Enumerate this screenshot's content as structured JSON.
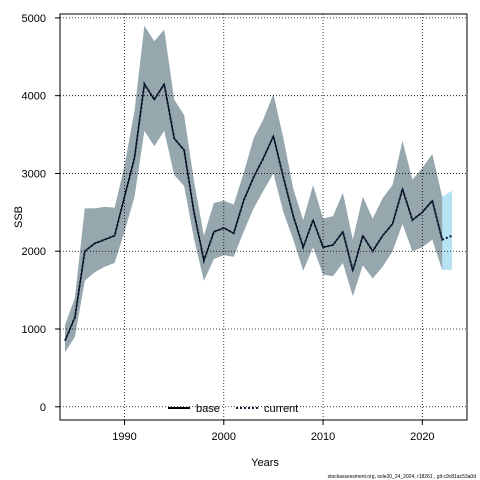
{
  "chart_data": {
    "type": "line",
    "title": "",
    "xlabel": "Years",
    "ylabel": "SSB",
    "xlim": [
      1983.5,
      2024.5
    ],
    "ylim": [
      -170,
      5050
    ],
    "x_ticks": [
      1990,
      2000,
      2010,
      2020
    ],
    "y_ticks": [
      0,
      1000,
      2000,
      3000,
      4000,
      5000
    ],
    "grid": true,
    "legend_position": "bottom-center",
    "legend": [
      {
        "name": "base",
        "style": "solid"
      },
      {
        "name": "current",
        "style": "dotted"
      }
    ],
    "years": [
      1984,
      1985,
      1986,
      1987,
      1988,
      1989,
      1990,
      1991,
      1992,
      1993,
      1994,
      1995,
      1996,
      1997,
      1998,
      1999,
      2000,
      2001,
      2002,
      2003,
      2004,
      2005,
      2006,
      2007,
      2008,
      2009,
      2010,
      2011,
      2012,
      2013,
      2014,
      2015,
      2016,
      2017,
      2018,
      2019,
      2020,
      2021,
      2022,
      2023
    ],
    "series": [
      {
        "name": "base",
        "years": [
          1984,
          1985,
          1986,
          1987,
          1988,
          1989,
          1990,
          1991,
          1992,
          1993,
          1994,
          1995,
          1996,
          1997,
          1998,
          1999,
          2000,
          2001,
          2002,
          2003,
          2004,
          2005,
          2006,
          2007,
          2008,
          2009,
          2010,
          2011,
          2012,
          2013,
          2014,
          2015,
          2016,
          2017,
          2018,
          2019,
          2020,
          2021,
          2022
        ],
        "values": [
          850,
          1150,
          2000,
          2100,
          2150,
          2200,
          2700,
          3200,
          4150,
          3950,
          4150,
          3450,
          3300,
          2500,
          1880,
          2250,
          2300,
          2230,
          2650,
          2950,
          3200,
          3480,
          2950,
          2450,
          2050,
          2400,
          2050,
          2080,
          2250,
          1750,
          2200,
          2000,
          2200,
          2350,
          2800,
          2400,
          2500,
          2650,
          2150
        ],
        "lower": [
          700,
          900,
          1620,
          1730,
          1800,
          1850,
          2250,
          2700,
          3550,
          3350,
          3550,
          2980,
          2840,
          2160,
          1620,
          1900,
          1950,
          1930,
          2250,
          2550,
          2780,
          3000,
          2500,
          2150,
          1750,
          2050,
          1700,
          1680,
          1850,
          1420,
          1820,
          1650,
          1800,
          2000,
          2350,
          2000,
          2050,
          2150,
          1760
        ],
        "upper": [
          1050,
          1400,
          2550,
          2550,
          2570,
          2560,
          3100,
          3800,
          4900,
          4700,
          4850,
          3950,
          3750,
          2900,
          2200,
          2620,
          2650,
          2600,
          3000,
          3450,
          3700,
          4020,
          3450,
          2800,
          2400,
          2850,
          2420,
          2450,
          2750,
          2150,
          2700,
          2420,
          2680,
          2850,
          3420,
          2920,
          3070,
          3250,
          2700
        ]
      },
      {
        "name": "current",
        "values": [
          850,
          1150,
          2000,
          2100,
          2150,
          2200,
          2700,
          3200,
          4150,
          3950,
          4150,
          3450,
          3300,
          2500,
          1880,
          2250,
          2300,
          2230,
          2650,
          2950,
          3200,
          3480,
          2950,
          2450,
          2050,
          2400,
          2050,
          2080,
          2250,
          1750,
          2200,
          2000,
          2200,
          2350,
          2800,
          2400,
          2500,
          2650,
          2150,
          2200
        ],
        "lower": [
          700,
          900,
          1620,
          1730,
          1800,
          1850,
          2250,
          2700,
          3550,
          3350,
          3550,
          2980,
          2840,
          2160,
          1620,
          1900,
          1950,
          1930,
          2250,
          2550,
          2780,
          3000,
          2500,
          2150,
          1750,
          2050,
          1700,
          1680,
          1850,
          1420,
          1820,
          1650,
          1800,
          2000,
          2350,
          2000,
          2050,
          2150,
          1760,
          1760
        ],
        "upper": [
          1050,
          1400,
          2550,
          2550,
          2570,
          2560,
          3100,
          3800,
          4900,
          4700,
          4850,
          3950,
          3750,
          2900,
          2200,
          2620,
          2650,
          2600,
          3000,
          3450,
          3700,
          4020,
          3450,
          2800,
          2400,
          2850,
          2420,
          2450,
          2750,
          2150,
          2700,
          2420,
          2680,
          2850,
          3420,
          2920,
          3070,
          3250,
          2700,
          2780
        ]
      }
    ],
    "colors": {
      "base_band": "#808080",
      "current_band": "#87ceeb",
      "base_line": "#000000",
      "current_line": "#0a1f3d",
      "grid": "#000000"
    }
  },
  "footer": "stockassessment.org, sole20_24_2024, r18261 , git:c9c81ac53a0d"
}
